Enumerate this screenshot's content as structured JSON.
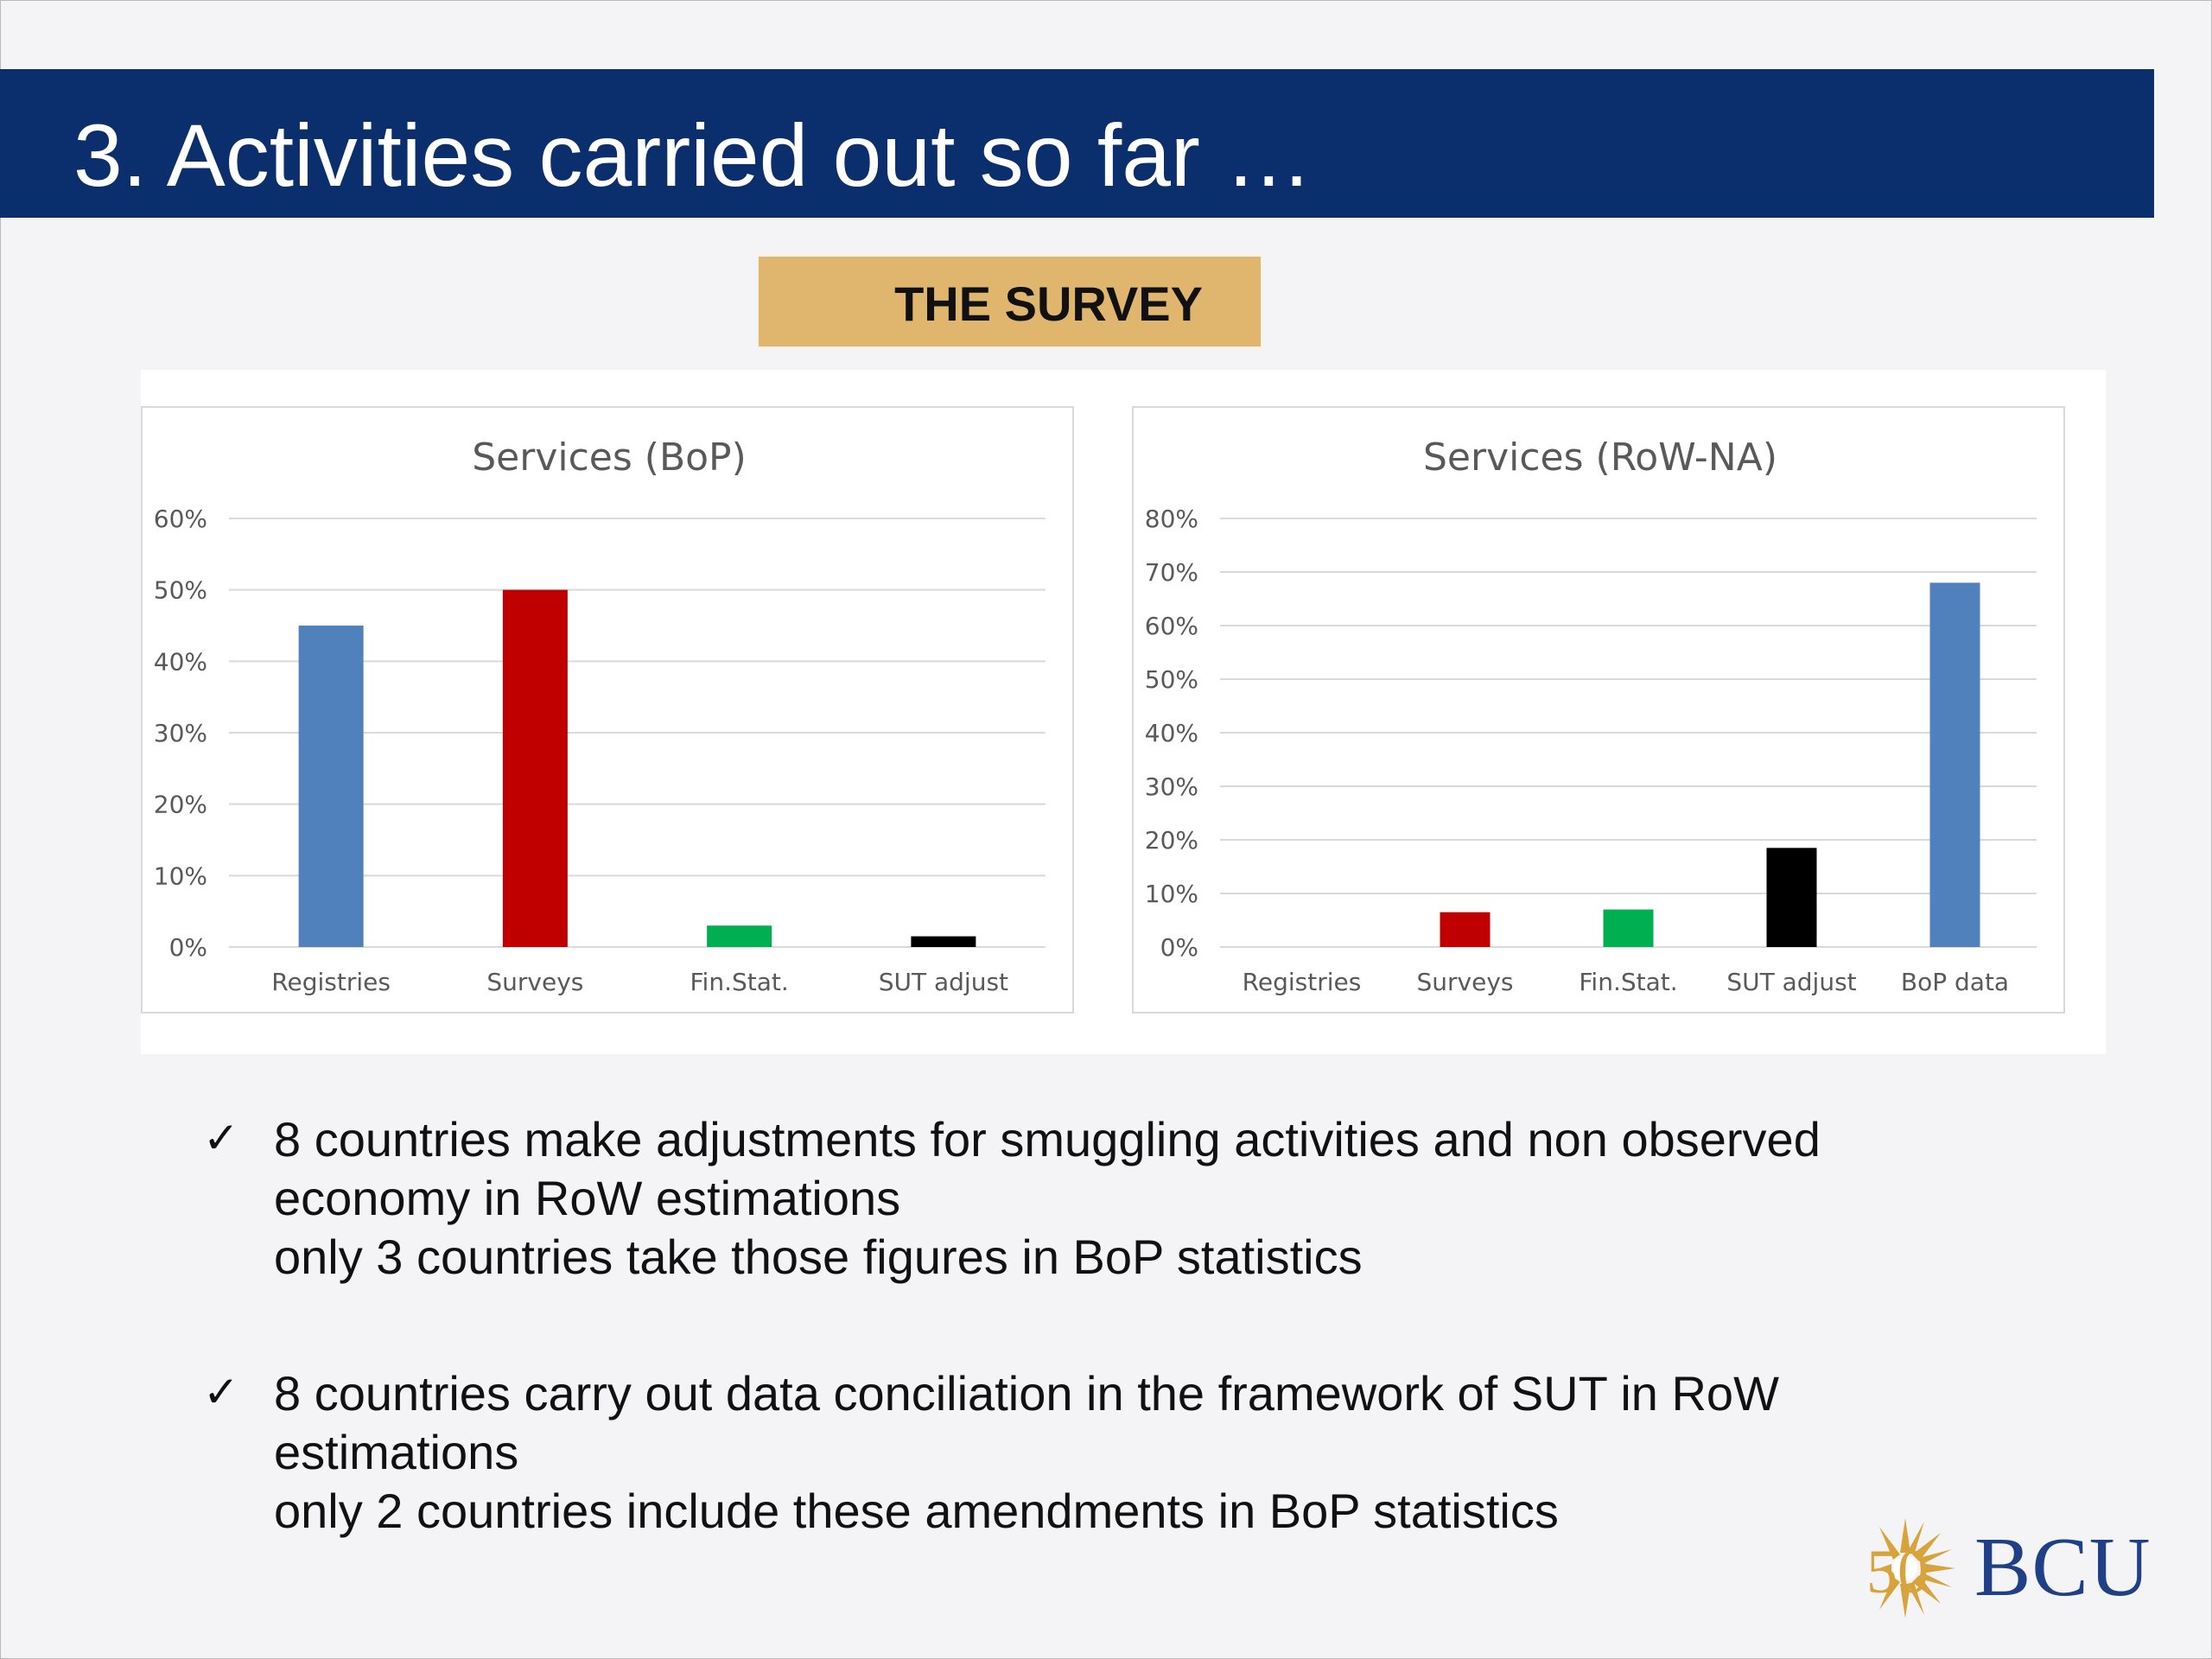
{
  "slide": {
    "title": "3. Activities carried out so far …",
    "section_label": "THE SURVEY",
    "logo_text": "BCU",
    "logo_number": "50"
  },
  "colors": {
    "title_band": "#0b2e6c",
    "label_box": "#e0b56e",
    "blue": "#5081bd",
    "red": "#c00000",
    "green": "#00b050",
    "black": "#000000"
  },
  "chart_data": [
    {
      "type": "bar",
      "title": "Services (BoP)",
      "categories": [
        "Registries",
        "Surveys",
        "Fin.Stat.",
        "SUT adjust"
      ],
      "values": [
        0.45,
        0.5,
        0.03,
        0.015
      ],
      "bar_colors": [
        "#5081bd",
        "#c00000",
        "#00b050",
        "#000000"
      ],
      "ylim": [
        0,
        0.6
      ],
      "yticks": [
        "0%",
        "10%",
        "20%",
        "30%",
        "40%",
        "50%",
        "60%"
      ],
      "grid": true,
      "legend": "none"
    },
    {
      "type": "bar",
      "title": "Services (RoW-NA)",
      "categories": [
        "Registries",
        "Surveys",
        "Fin.Stat.",
        "SUT adjust",
        "BoP data"
      ],
      "values": [
        0,
        0.065,
        0.07,
        0.185,
        0.68
      ],
      "bar_colors": [
        "#5081bd",
        "#c00000",
        "#00b050",
        "#000000",
        "#5081bd"
      ],
      "ylim": [
        0,
        0.8
      ],
      "yticks": [
        "0%",
        "10%",
        "20%",
        "30%",
        "40%",
        "50%",
        "60%",
        "70%",
        "80%"
      ],
      "grid": true,
      "legend": "none"
    }
  ],
  "bullets": [
    {
      "check": "✓",
      "lines": [
        "8 countries make adjustments for smuggling activities and non observed",
        "economy in RoW estimations",
        "only 3 countries take those figures in BoP statistics"
      ]
    },
    {
      "check": "✓",
      "lines": [
        "8 countries carry out data conciliation in the framework of SUT in RoW",
        "estimations",
        "only 2 countries include these amendments in BoP statistics"
      ]
    }
  ]
}
